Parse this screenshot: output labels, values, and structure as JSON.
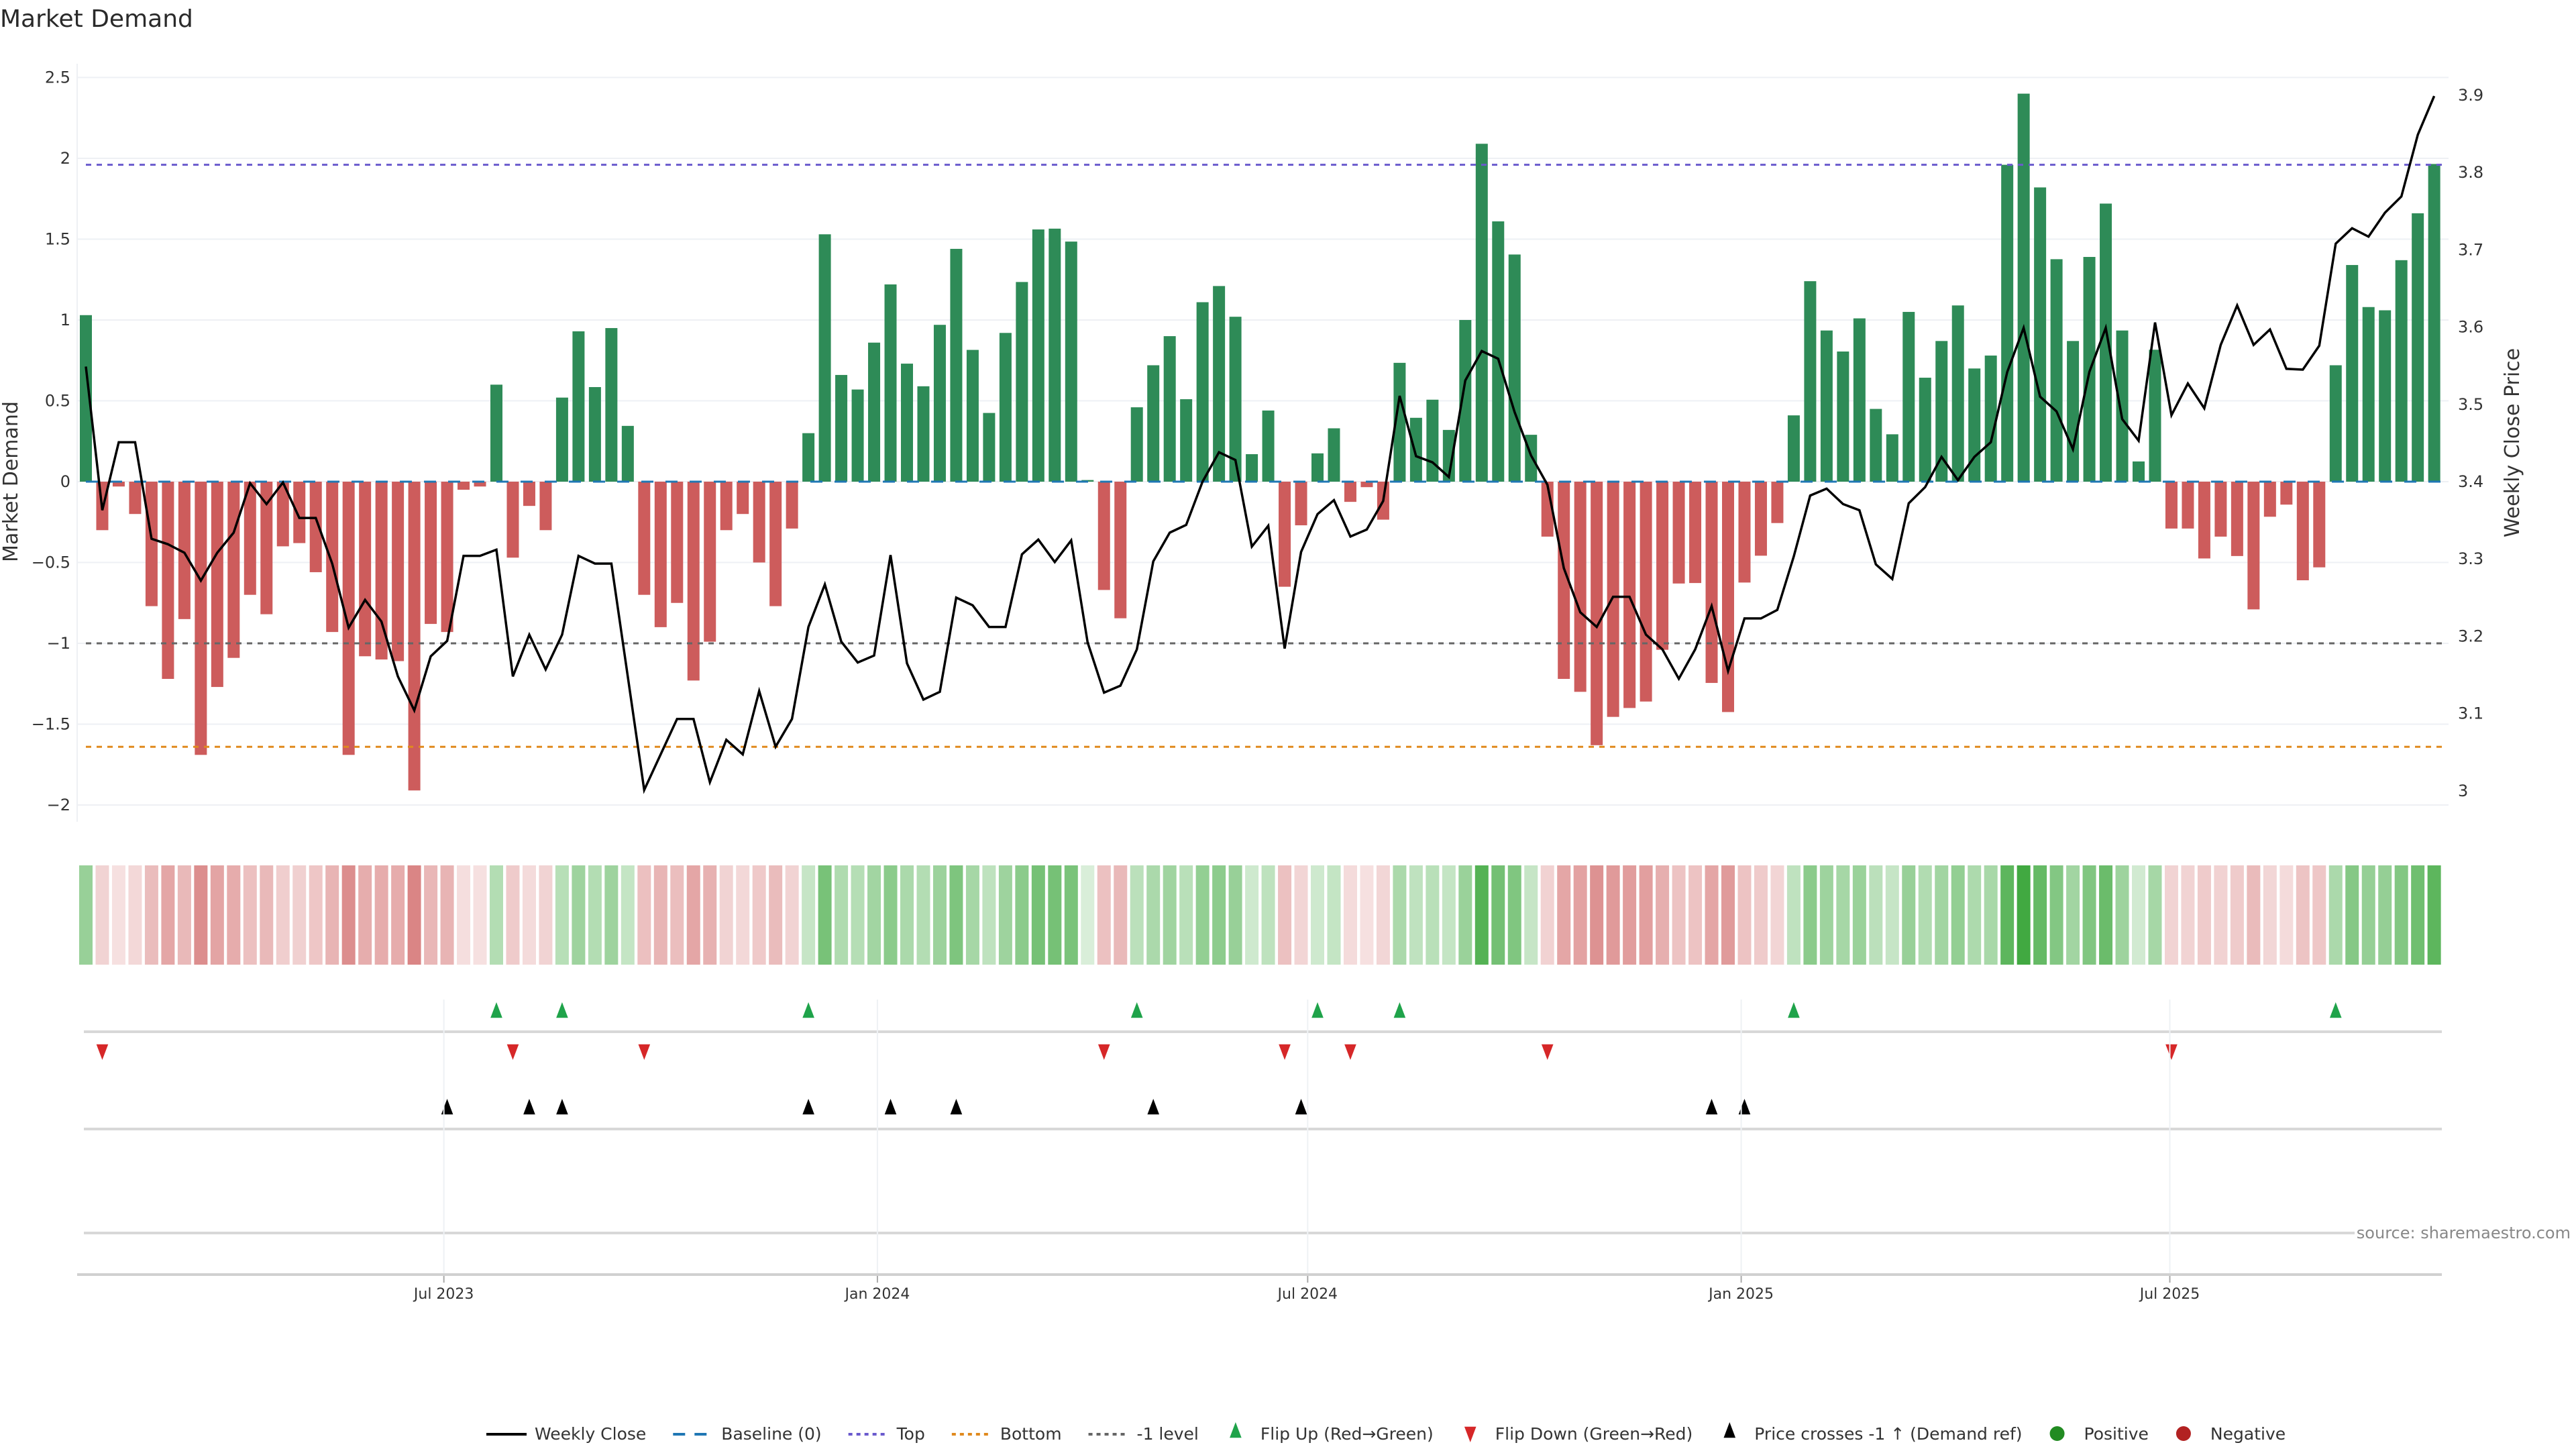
{
  "chart_data": {
    "type": "bar",
    "title": "Market Demand",
    "ylabel": "Market Demand",
    "y2label": "Weekly Close Price",
    "ylim": [
      -2.1,
      2.62
    ],
    "y2lim": [
      2.98,
      3.96
    ],
    "yticks": [
      2.5,
      2,
      1.5,
      1,
      0.5,
      0,
      -0.5,
      -1,
      -1.5,
      -2
    ],
    "ytick_labels": [
      "2.5",
      "2",
      "1.5",
      "1",
      "0.5",
      "0",
      "−0.5",
      "−1",
      "−1.5",
      "−2"
    ],
    "y2ticks": [
      3.9,
      3.8,
      3.7,
      3.6,
      3.5,
      3.4,
      3.3,
      3.2,
      3.1,
      3
    ],
    "y2tick_labels": [
      "3.9",
      "3.8",
      "3.7",
      "3.6",
      "3.5",
      "3.4",
      "3.3",
      "3.2",
      "3.1",
      "3"
    ],
    "xticks": [
      {
        "label": "Jul 2023",
        "index": 21.8
      },
      {
        "label": "Jan 2024",
        "index": 48.2
      },
      {
        "label": "Jul 2024",
        "index": 74.4
      },
      {
        "label": "Jan 2025",
        "index": 100.8
      },
      {
        "label": "Jul 2025",
        "index": 126.9
      }
    ],
    "reference_lines": {
      "baseline": 0,
      "top": 1.96,
      "bottom": -1.64,
      "minus_one": -1
    },
    "grid": true,
    "demand": [
      1.03,
      -0.3,
      -0.03,
      -0.2,
      -0.77,
      -1.22,
      -0.85,
      -1.69,
      -1.27,
      -1.09,
      -0.7,
      -0.82,
      -0.4,
      -0.38,
      -0.56,
      -0.93,
      -1.69,
      -1.08,
      -1.1,
      -1.11,
      -1.91,
      -0.88,
      -0.93,
      -0.05,
      -0.03,
      0.6,
      -0.47,
      -0.15,
      -0.3,
      0.52,
      0.93,
      0.585,
      0.95,
      0.345,
      -0.7,
      -0.9,
      -0.75,
      -1.23,
      -0.99,
      -0.3,
      -0.2,
      -0.5,
      -0.77,
      -0.29,
      0.3,
      1.53,
      0.66,
      0.57,
      0.86,
      1.22,
      0.73,
      0.59,
      0.97,
      1.44,
      0.815,
      0.425,
      0.92,
      1.235,
      1.56,
      1.565,
      1.485,
      0.01,
      -0.67,
      -0.845,
      0.46,
      0.72,
      0.9,
      0.51,
      1.11,
      1.21,
      1.02,
      0.17,
      0.44,
      -0.65,
      -0.27,
      0.175,
      0.33,
      -0.125,
      -0.034,
      -0.235,
      0.735,
      0.395,
      0.507,
      0.32,
      1.0,
      2.09,
      1.61,
      1.405,
      0.29,
      -0.34,
      -1.22,
      -1.3,
      -1.63,
      -1.455,
      -1.4,
      -1.36,
      -1.04,
      -0.63,
      -0.627,
      -1.245,
      -1.425,
      -0.624,
      -0.458,
      -0.256,
      0.41,
      1.24,
      0.935,
      0.805,
      1.01,
      0.45,
      0.293,
      1.05,
      0.643,
      0.87,
      1.09,
      0.7,
      0.78,
      1.96,
      2.4,
      1.82,
      1.376,
      0.87,
      1.39,
      1.72,
      0.935,
      0.125,
      0.816,
      -0.29,
      -0.29,
      -0.475,
      -0.34,
      -0.46,
      -0.79,
      -0.217,
      -0.142,
      -0.61,
      -0.53,
      0.72,
      1.34,
      1.08,
      1.06,
      1.37,
      1.66,
      1.965
    ],
    "weekly_close": [
      3.549,
      3.363,
      3.451,
      3.451,
      3.326,
      3.319,
      3.308,
      3.272,
      3.308,
      3.334,
      3.398,
      3.371,
      3.399,
      3.353,
      3.353,
      3.294,
      3.211,
      3.247,
      3.219,
      3.148,
      3.104,
      3.174,
      3.194,
      3.304,
      3.304,
      3.312,
      3.148,
      3.202,
      3.157,
      3.202,
      3.304,
      3.294,
      3.294,
      3.148,
      3.001,
      3.047,
      3.093,
      3.093,
      3.011,
      3.066,
      3.047,
      3.129,
      3.057,
      3.093,
      3.212,
      3.267,
      3.193,
      3.166,
      3.175,
      3.305,
      3.165,
      3.118,
      3.128,
      3.25,
      3.24,
      3.212,
      3.212,
      3.306,
      3.325,
      3.296,
      3.324,
      3.192,
      3.127,
      3.136,
      3.183,
      3.297,
      3.334,
      3.344,
      3.4,
      3.438,
      3.428,
      3.316,
      3.343,
      3.184,
      3.309,
      3.358,
      3.376,
      3.329,
      3.338,
      3.375,
      3.511,
      3.433,
      3.425,
      3.406,
      3.531,
      3.569,
      3.559,
      3.49,
      3.434,
      3.396,
      3.288,
      3.231,
      3.212,
      3.251,
      3.251,
      3.202,
      3.183,
      3.145,
      3.183,
      3.239,
      3.155,
      3.223,
      3.223,
      3.234,
      3.303,
      3.382,
      3.391,
      3.371,
      3.363,
      3.293,
      3.274,
      3.372,
      3.393,
      3.432,
      3.402,
      3.432,
      3.451,
      3.542,
      3.599,
      3.51,
      3.491,
      3.442,
      3.542,
      3.599,
      3.481,
      3.453,
      3.606,
      3.486,
      3.527,
      3.495,
      3.577,
      3.628,
      3.577,
      3.597,
      3.546,
      3.545,
      3.576,
      3.708,
      3.728,
      3.717,
      3.748,
      3.769,
      3.849,
      3.899
    ],
    "flip_up_indices": [
      25,
      29,
      44,
      64,
      75,
      80,
      104,
      137
    ],
    "flip_down_indices": [
      1,
      26,
      34,
      62,
      73,
      77,
      89,
      127
    ],
    "price_cross_up_indices": [
      22,
      27,
      29,
      44,
      49,
      53,
      65,
      74,
      99,
      101
    ],
    "colors": {
      "positive_bar": "#2e8b57",
      "negative_bar": "#cd5c5c",
      "line": "#000000",
      "baseline": "#1f77b4",
      "top": "#6a5acd",
      "bottom": "#e08a1e",
      "minus_one": "#666666",
      "flip_up": "#1fa34a",
      "flip_down": "#d62728",
      "cross": "#000000",
      "positive_dot": "#228b22",
      "negative_dot": "#b22222",
      "heat_pos": "#2ca02c",
      "heat_neg": "#cd5c5c"
    },
    "legend": [
      {
        "label": "Weekly Close",
        "kind": "solid",
        "color": "#000000"
      },
      {
        "label": "Baseline (0)",
        "kind": "dash",
        "color": "#1f77b4"
      },
      {
        "label": "Top",
        "kind": "dot",
        "color": "#6a5acd"
      },
      {
        "label": "Bottom",
        "kind": "dot",
        "color": "#e08a1e"
      },
      {
        "label": "-1 level",
        "kind": "dot",
        "color": "#666666"
      },
      {
        "label": "Flip Up (Red→Green)",
        "kind": "tri-up",
        "color": "#1fa34a"
      },
      {
        "label": "Flip Down (Green→Red)",
        "kind": "tri-down",
        "color": "#d62728"
      },
      {
        "label": "Price crosses -1 ↑ (Demand ref)",
        "kind": "tri-up",
        "color": "#000000"
      },
      {
        "label": "Positive",
        "kind": "dot-marker",
        "color": "#228b22"
      },
      {
        "label": "Negative",
        "kind": "dot-marker",
        "color": "#b22222"
      }
    ],
    "legend_position": "bottom-center",
    "source": "source: sharemaestro.com"
  }
}
